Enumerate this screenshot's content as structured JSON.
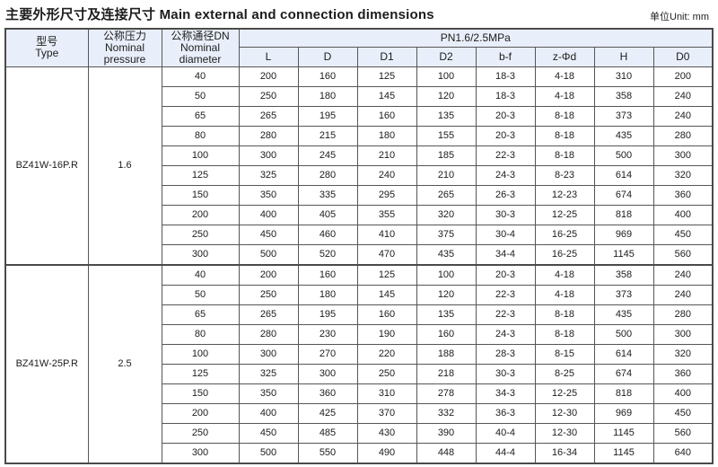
{
  "page": {
    "title_zh": "主要外形尺寸及连接尺寸",
    "title_en": "Main external and connection dimensions",
    "unit_label": "单位Unit: mm"
  },
  "table": {
    "headers": {
      "type_zh": "型号",
      "type_en": "Type",
      "pressure_zh": "公称压力",
      "pressure_en": "Nominal pressure",
      "diameter_zh": "公称通径DN",
      "diameter_en": "Nominal diameter",
      "pn_header": "PN1.6/2.5MPa"
    },
    "dim_columns": [
      "L",
      "D",
      "D1",
      "D2",
      "b-f",
      "z-Φd",
      "H",
      "D0"
    ],
    "groups": [
      {
        "type": "BZ41W-16P.R",
        "pressure": "1.6",
        "rows": [
          {
            "dn": "40",
            "values": [
              "200",
              "160",
              "125",
              "100",
              "18-3",
              "4-18",
              "310",
              "200"
            ]
          },
          {
            "dn": "50",
            "values": [
              "250",
              "180",
              "145",
              "120",
              "18-3",
              "4-18",
              "358",
              "240"
            ]
          },
          {
            "dn": "65",
            "values": [
              "265",
              "195",
              "160",
              "135",
              "20-3",
              "8-18",
              "373",
              "240"
            ]
          },
          {
            "dn": "80",
            "values": [
              "280",
              "215",
              "180",
              "155",
              "20-3",
              "8-18",
              "435",
              "280"
            ]
          },
          {
            "dn": "100",
            "values": [
              "300",
              "245",
              "210",
              "185",
              "22-3",
              "8-18",
              "500",
              "300"
            ]
          },
          {
            "dn": "125",
            "values": [
              "325",
              "280",
              "240",
              "210",
              "24-3",
              "8-23",
              "614",
              "320"
            ]
          },
          {
            "dn": "150",
            "values": [
              "350",
              "335",
              "295",
              "265",
              "26-3",
              "12-23",
              "674",
              "360"
            ]
          },
          {
            "dn": "200",
            "values": [
              "400",
              "405",
              "355",
              "320",
              "30-3",
              "12-25",
              "818",
              "400"
            ]
          },
          {
            "dn": "250",
            "values": [
              "450",
              "460",
              "410",
              "375",
              "30-4",
              "16-25",
              "969",
              "450"
            ]
          },
          {
            "dn": "300",
            "values": [
              "500",
              "520",
              "470",
              "435",
              "34-4",
              "16-25",
              "1145",
              "560"
            ]
          }
        ]
      },
      {
        "type": "BZ41W-25P.R",
        "pressure": "2.5",
        "rows": [
          {
            "dn": "40",
            "values": [
              "200",
              "160",
              "125",
              "100",
              "20-3",
              "4-18",
              "358",
              "240"
            ]
          },
          {
            "dn": "50",
            "values": [
              "250",
              "180",
              "145",
              "120",
              "22-3",
              "4-18",
              "373",
              "240"
            ]
          },
          {
            "dn": "65",
            "values": [
              "265",
              "195",
              "160",
              "135",
              "22-3",
              "8-18",
              "435",
              "280"
            ]
          },
          {
            "dn": "80",
            "values": [
              "280",
              "230",
              "190",
              "160",
              "24-3",
              "8-18",
              "500",
              "300"
            ]
          },
          {
            "dn": "100",
            "values": [
              "300",
              "270",
              "220",
              "188",
              "28-3",
              "8-15",
              "614",
              "320"
            ]
          },
          {
            "dn": "125",
            "values": [
              "325",
              "300",
              "250",
              "218",
              "30-3",
              "8-25",
              "674",
              "360"
            ]
          },
          {
            "dn": "150",
            "values": [
              "350",
              "360",
              "310",
              "278",
              "34-3",
              "12-25",
              "818",
              "400"
            ]
          },
          {
            "dn": "200",
            "values": [
              "400",
              "425",
              "370",
              "332",
              "36-3",
              "12-30",
              "969",
              "450"
            ]
          },
          {
            "dn": "250",
            "values": [
              "450",
              "485",
              "430",
              "390",
              "40-4",
              "12-30",
              "1145",
              "560"
            ]
          },
          {
            "dn": "300",
            "values": [
              "500",
              "550",
              "490",
              "448",
              "44-4",
              "16-34",
              "1145",
              "640"
            ]
          }
        ]
      }
    ]
  }
}
